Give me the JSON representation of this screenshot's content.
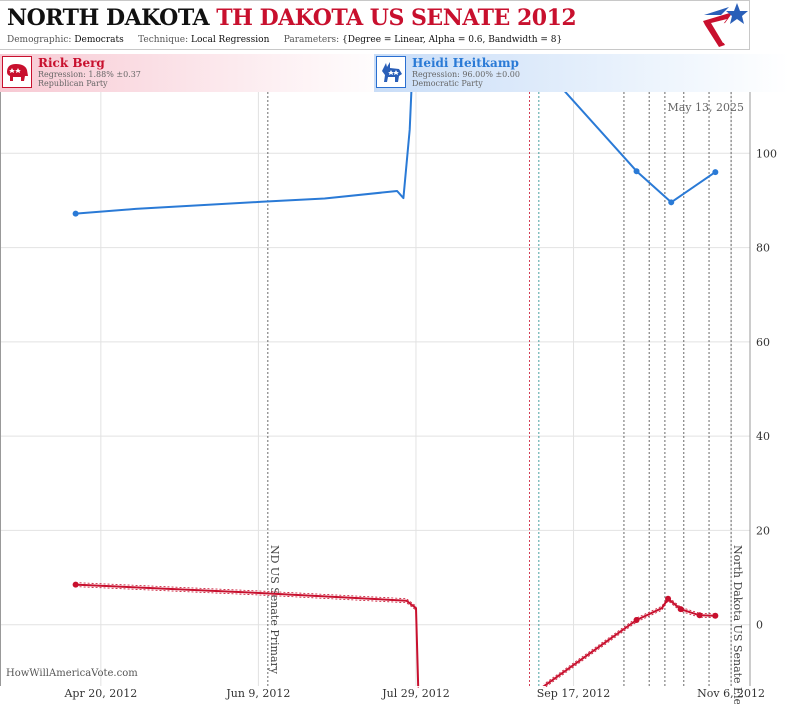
{
  "header": {
    "state": "NORTH DAKOTA",
    "race": "TH DAKOTA US SENATE 2012",
    "demographic_label": "Demographic:",
    "demographic_value": "Democrats",
    "technique_label": "Technique:",
    "technique_value": "Local Regression",
    "parameters_label": "Parameters:",
    "parameters_value": "{Degree = Linear, Alpha = 0.6, Bandwidth = 8}"
  },
  "candidates": {
    "rep": {
      "name": "Rick Berg",
      "regression": "Regression: 1.88% ±0.37",
      "party": "Republican Party",
      "color": "#c8102e",
      "icon": "elephant-icon"
    },
    "dem": {
      "name": "Heidi Heitkamp",
      "regression": "Regression: 96.00% ±0.00",
      "party": "Democratic Party",
      "color": "#2a7ad6",
      "icon": "donkey-icon"
    }
  },
  "date_stamp": "May 13, 2025",
  "watermark": "HowWillAmericaVote.com",
  "chart_data": {
    "type": "line",
    "x_start": "2012-03-19",
    "x_end": "2012-11-12",
    "xticks": [
      {
        "date": "2012-04-20",
        "label": "Apr 20, 2012"
      },
      {
        "date": "2012-06-09",
        "label": "Jun 9, 2012"
      },
      {
        "date": "2012-07-29",
        "label": "Jul 29, 2012"
      },
      {
        "date": "2012-09-17",
        "label": "Sep 17, 2012"
      },
      {
        "date": "2012-11-06",
        "label": "Nov 6, 2012"
      }
    ],
    "ylim": [
      -13,
      113
    ],
    "yticks": [
      0,
      20,
      40,
      60,
      80,
      100
    ],
    "grid": true,
    "events": [
      {
        "date": "2012-06-12",
        "label": "ND US Senate Primary",
        "color": "#444444"
      },
      {
        "date": "2012-11-06",
        "label": "North Dakota US Senate Election",
        "color": "#444444"
      }
    ],
    "markers": [
      {
        "date": "2012-09-03",
        "color": "#c8102e"
      },
      {
        "date": "2012-09-06",
        "color": "#1a8a8a"
      },
      {
        "date": "2012-10-03",
        "color": "#444444"
      },
      {
        "date": "2012-10-11",
        "color": "#444444"
      },
      {
        "date": "2012-10-16",
        "color": "#444444"
      },
      {
        "date": "2012-10-22",
        "color": "#444444"
      },
      {
        "date": "2012-10-30",
        "color": "#444444"
      }
    ],
    "series": [
      {
        "name": "Heidi Heitkamp",
        "color": "#2a7ad6",
        "points": [
          [
            "2012-04-12",
            87.2
          ],
          [
            "2012-05-01",
            88.2
          ],
          [
            "2012-06-10",
            89.7
          ],
          [
            "2012-06-30",
            90.4
          ],
          [
            "2012-07-23",
            92.0
          ],
          [
            "2012-07-25",
            90.5
          ],
          [
            "2012-07-27",
            105.0
          ],
          [
            "2012-07-28",
            120.0
          ],
          [
            "2012-09-05",
            120.0
          ],
          [
            "2012-10-07",
            96.2
          ],
          [
            "2012-10-18",
            89.6
          ],
          [
            "2012-11-01",
            96.0
          ]
        ],
        "dots": [
          [
            "2012-04-12",
            87.2
          ],
          [
            "2012-10-07",
            96.2
          ],
          [
            "2012-10-18",
            89.6
          ],
          [
            "2012-11-01",
            96.0
          ]
        ]
      },
      {
        "name": "Rick Berg",
        "color": "#c8102e",
        "points": [
          [
            "2012-04-12",
            8.5
          ],
          [
            "2012-06-10",
            6.7
          ],
          [
            "2012-07-26",
            5.1
          ],
          [
            "2012-07-29",
            3.5
          ],
          [
            "2012-07-30",
            -20.0
          ],
          [
            "2012-08-24",
            -20.0
          ],
          [
            "2012-10-07",
            1.0
          ],
          [
            "2012-10-15",
            3.5
          ],
          [
            "2012-10-17",
            5.5
          ],
          [
            "2012-10-21",
            3.3
          ],
          [
            "2012-10-27",
            2.0
          ],
          [
            "2012-11-01",
            1.9
          ]
        ],
        "dots": [
          [
            "2012-04-12",
            8.5
          ],
          [
            "2012-10-07",
            1.0
          ],
          [
            "2012-10-17",
            5.5
          ],
          [
            "2012-10-21",
            3.3
          ],
          [
            "2012-10-27",
            2.0
          ],
          [
            "2012-11-01",
            1.9
          ]
        ]
      }
    ]
  }
}
